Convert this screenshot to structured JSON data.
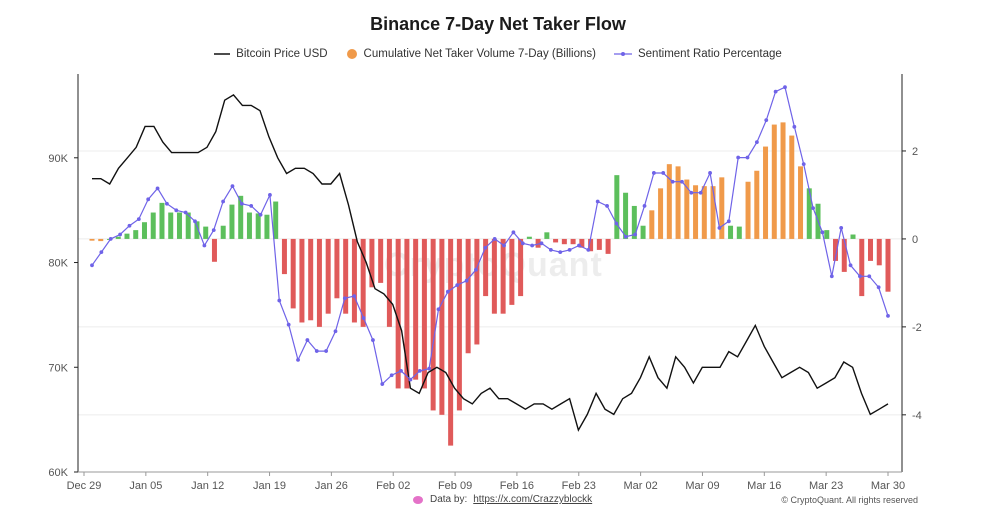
{
  "title": "Binance 7-Day Net Taker Flow",
  "legend": {
    "price": "Bitcoin Price USD",
    "volume": "Cumulative Net Taker Volume 7-Day (Billions)",
    "sentiment": "Sentiment Ratio Percentage"
  },
  "watermark": "CryptoQuant",
  "footer": {
    "data_by_label": "Data by:",
    "data_by_link": "https://x.com/Crazzyblockk",
    "copyright": "© CryptoQuant. All rights reserved"
  },
  "colors": {
    "price": "#111111",
    "sentiment": "#6f63e8",
    "pos_green": "#5cbf5c",
    "pos_orange": "#f09a4a",
    "neg_red": "#e05a5a"
  },
  "chart_data": {
    "type": "bar-line-combo",
    "title": "Binance 7-Day Net Taker Flow",
    "x_start": "2023-12-29",
    "x_tick_labels": [
      "Dec 29",
      "Jan 05",
      "Jan 12",
      "Jan 19",
      "Jan 26",
      "Feb 02",
      "Feb 09",
      "Feb 16",
      "Feb 23",
      "Mar 02",
      "Mar 09",
      "Mar 16",
      "Mar 23",
      "Mar 30"
    ],
    "left_axis": {
      "label": "",
      "ticks": [
        "60K",
        "70K",
        "80K",
        "90K"
      ],
      "range": [
        60000,
        98000
      ]
    },
    "right_axis": {
      "label": "",
      "ticks": [
        "-4",
        "-2",
        "0",
        "2"
      ],
      "range": [
        -5.3,
        3.75
      ]
    },
    "grid": true,
    "legend_position": "top-center",
    "series": [
      {
        "name": "Bitcoin Price USD",
        "axis": "left",
        "kind": "line",
        "values": [
          88000,
          88000,
          87500,
          89000,
          90000,
          91000,
          93000,
          93000,
          91500,
          90500,
          90500,
          90500,
          90500,
          91000,
          92500,
          95500,
          96000,
          95000,
          95000,
          94500,
          92000,
          90000,
          88500,
          89000,
          89000,
          88500,
          87500,
          87500,
          88500,
          85500,
          82000,
          80000,
          77500,
          77000,
          76000,
          73500,
          68000,
          67500,
          69500,
          70000,
          69500,
          68000,
          67000,
          66500,
          67500,
          68000,
          67000,
          67000,
          66500,
          66000,
          66500,
          66500,
          66000,
          66500,
          67000,
          64000,
          65500,
          67500,
          66000,
          65500,
          67000,
          67500,
          69000,
          71000,
          69000,
          68000,
          71000,
          70000,
          68500,
          70000,
          70000,
          70000,
          71500,
          71000,
          72500,
          74000,
          72000,
          70500,
          69000,
          69500,
          70000,
          69500,
          68000,
          68500,
          69000,
          70500,
          70000,
          67500,
          65500,
          66000,
          66500
        ]
      },
      {
        "name": "Cumulative Net Taker Volume 7-Day (Billions)",
        "axis": "right",
        "kind": "bar",
        "colors_by_value": "green when positive before Feb 26 and after Mar 19, orange when positive Feb 26 - Mar 19, red when negative",
        "values": [
          -0.04,
          -0.05,
          0.0,
          0.05,
          0.12,
          0.2,
          0.38,
          0.6,
          0.82,
          0.6,
          0.6,
          0.6,
          0.4,
          0.28,
          -0.52,
          0.3,
          0.78,
          0.98,
          0.6,
          0.58,
          0.55,
          0.85,
          -0.8,
          -1.58,
          -1.9,
          -1.85,
          -2.0,
          -1.7,
          -1.35,
          -1.7,
          -1.9,
          -2.0,
          -1.1,
          -1.0,
          -2.0,
          -3.4,
          -3.4,
          -3.2,
          -3.4,
          -3.9,
          -4.0,
          -4.7,
          -3.9,
          -2.6,
          -2.4,
          -1.3,
          -1.7,
          -1.7,
          -1.5,
          -1.3,
          0.05,
          -0.2,
          0.15,
          -0.08,
          -0.12,
          -0.12,
          -0.2,
          -0.28,
          -0.25,
          -0.34,
          1.45,
          1.05,
          0.75,
          0.3,
          0.65,
          1.15,
          1.7,
          1.65,
          1.35,
          1.22,
          1.2,
          1.2,
          1.4,
          0.3,
          0.28,
          1.3,
          1.55,
          2.1,
          2.6,
          2.65,
          2.35,
          1.65,
          1.15,
          0.8,
          0.2,
          -0.5,
          -0.75,
          0.1,
          -1.3,
          -0.5,
          -0.6,
          -1.2
        ]
      },
      {
        "name": "Sentiment Ratio Percentage",
        "axis": "right",
        "kind": "line-markers",
        "values": [
          -0.6,
          -0.3,
          0.0,
          0.1,
          0.3,
          0.45,
          0.9,
          1.15,
          0.8,
          0.65,
          0.6,
          0.4,
          -0.15,
          0.2,
          0.85,
          1.2,
          0.8,
          0.75,
          0.55,
          1.0,
          -1.4,
          -1.95,
          -2.75,
          -2.3,
          -2.55,
          -2.55,
          -2.1,
          -1.35,
          -1.3,
          -1.8,
          -2.3,
          -3.3,
          -3.1,
          -3.0,
          -3.2,
          -3.0,
          -2.95,
          -1.6,
          -1.2,
          -1.05,
          -0.95,
          -0.7,
          -0.2,
          0.0,
          -0.15,
          0.15,
          -0.1,
          -0.15,
          -0.1,
          -0.25,
          -0.3,
          -0.25,
          -0.15,
          -0.25,
          0.85,
          0.75,
          0.35,
          0.05,
          0.1,
          0.75,
          1.5,
          1.5,
          1.3,
          1.3,
          1.05,
          1.05,
          1.5,
          0.25,
          0.4,
          1.85,
          1.85,
          2.2,
          2.7,
          3.35,
          3.45,
          2.55,
          1.7,
          0.7,
          0.15,
          -0.85,
          0.25,
          -0.6,
          -0.85,
          -0.85,
          -1.1,
          -1.75
        ]
      }
    ]
  }
}
